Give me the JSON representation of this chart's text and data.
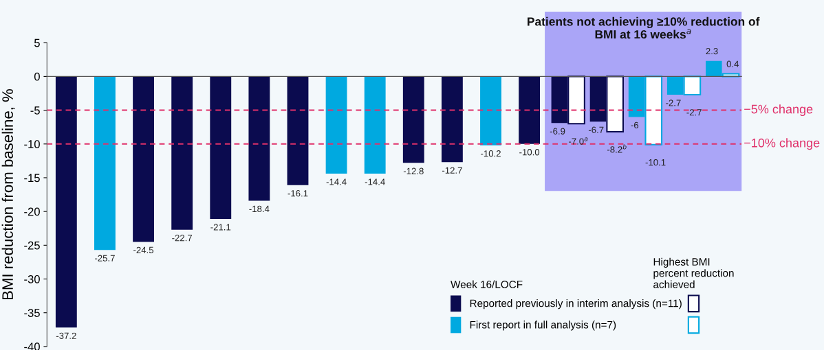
{
  "chart_data": {
    "type": "bar",
    "ylabel": "BMI reduction from baseline, %",
    "categories": [
      null,
      null,
      null,
      null,
      null,
      null,
      null,
      null,
      null,
      null,
      null,
      null,
      null,
      null,
      null,
      null,
      null,
      null
    ],
    "series": [
      {
        "name": "Reported previously in interim analysis (n=11)",
        "color": "#0b0b4f",
        "values": [
          -37.2,
          null,
          -24.5,
          -22.7,
          -21.1,
          -18.4,
          -16.1,
          null,
          null,
          -12.8,
          -12.7,
          null,
          -10.0,
          -6.9,
          -6.7,
          null,
          null,
          null
        ],
        "value_labels": [
          "-37.2",
          null,
          "-24.5",
          "-22.7",
          "-21.1",
          "-18.4",
          "-16.1",
          null,
          null,
          "-12.8",
          "-12.7",
          null,
          "-10.0",
          "-6.9",
          "-6.7",
          null,
          null,
          null
        ]
      },
      {
        "name": "First report in full analysis (n=7)",
        "color": "#00a9e0",
        "values": [
          null,
          -25.7,
          null,
          null,
          null,
          null,
          null,
          -14.4,
          -14.4,
          null,
          null,
          -10.2,
          null,
          null,
          null,
          -6,
          -2.7,
          2.3
        ],
        "value_labels": [
          null,
          "-25.7",
          null,
          null,
          null,
          null,
          null,
          "-14.4",
          "-14.4",
          null,
          null,
          "-10.2",
          null,
          null,
          null,
          "-6",
          "-2.7",
          "2.3"
        ]
      },
      {
        "color": "#0b0b4f",
        "values": [
          null,
          null,
          null,
          null,
          null,
          null,
          null,
          null,
          null,
          null,
          null,
          null,
          null,
          -7.0,
          -8.2,
          null,
          null,
          null
        ],
        "value_labels": [
          null,
          null,
          null,
          null,
          null,
          null,
          null,
          null,
          null,
          null,
          null,
          null,
          null,
          "-7.0$^{a}$",
          "-8.2$^{b}$",
          null,
          null,
          null
        ]
      },
      {
        "color": "#00a9e0",
        "values": [
          null,
          null,
          null,
          null,
          null,
          null,
          null,
          null,
          null,
          null,
          null,
          null,
          null,
          null,
          null,
          -10.1,
          -2.7,
          0.4
        ],
        "value_labels": [
          null,
          null,
          null,
          null,
          null,
          null,
          null,
          null,
          null,
          null,
          null,
          null,
          null,
          null,
          null,
          "-10.1",
          "-2.7",
          "0.4"
        ]
      }
    ],
    "ylim": [
      -40,
      5
    ],
    "yticks": [
      -40,
      -35,
      -30,
      -25,
      -20,
      -15,
      -10,
      -5,
      0,
      5
    ],
    "ref_lines": [
      {
        "axis": "y",
        "value": -5,
        "label": "−5% change",
        "color": "#e0306a",
        "line_style": "dashed"
      },
      {
        "axis": "y",
        "value": -10,
        "label": "−10% change",
        "color": "#e0306a",
        "line_style": "dashed"
      }
    ],
    "legend_title": "Week 16/LOCF",
    "annotations": [
      "Patients not achieving ≥10% reduction of\nBMI at 16 weeks$^{a}$",
      "Highest BMI\npercent reduction\nachieved"
    ],
    "legend": "bottom right"
  }
}
